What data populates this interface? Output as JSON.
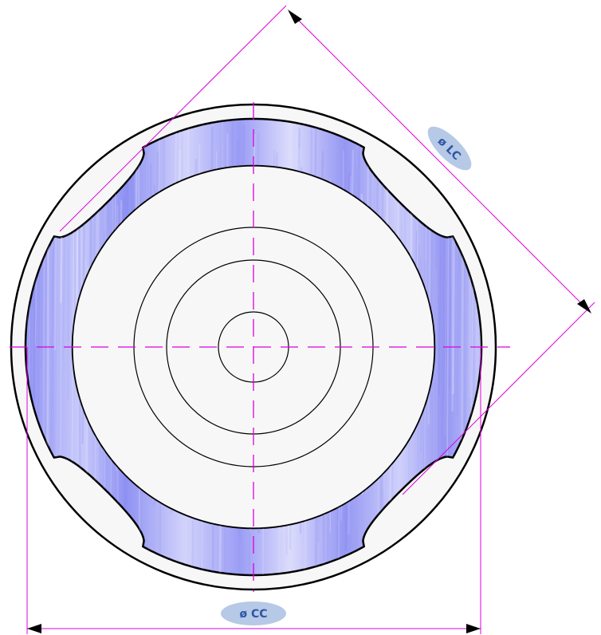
{
  "labels": {
    "lc": "ø LC",
    "cc": "ø CC"
  },
  "colors": {
    "dimension": "#dd00dd",
    "ring_fill": "#9a9cf6",
    "ring_light": "#d4d5fb",
    "face": "#f7f7f7",
    "outline": "#000000",
    "label_bg": "#b6c9e6",
    "label_text": "#2f55a4"
  }
}
